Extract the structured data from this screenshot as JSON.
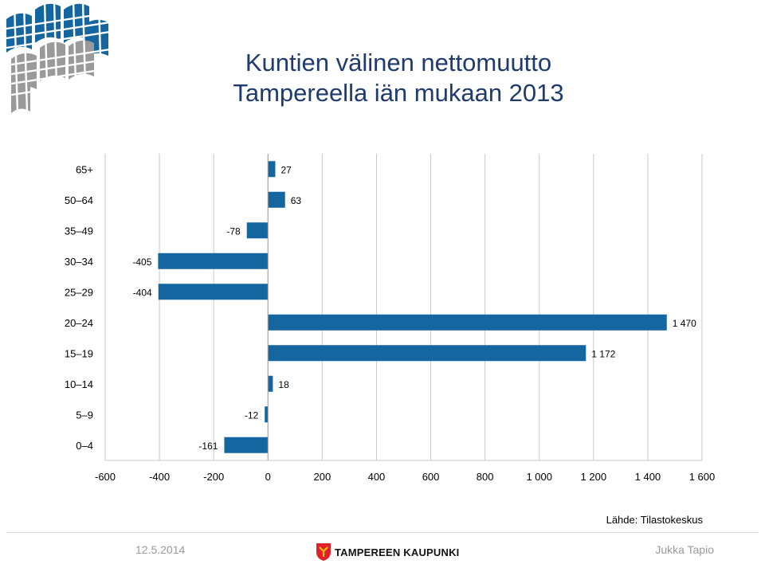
{
  "title_line1": "Kuntien välinen nettomuutto",
  "title_line2": "Tampereella iän mukaan 2013",
  "source": "Lähde: Tilastokeskus",
  "footer": {
    "date": "12.5.2014",
    "city": "TAMPEREEN KAUPUNKI",
    "author": "Jukka Tapio"
  },
  "colors": {
    "bar": "#1466a0",
    "title": "#1f3b6e"
  },
  "chart_data": {
    "type": "bar",
    "orientation": "horizontal",
    "categories": [
      "65+",
      "50–64",
      "35–49",
      "30–34",
      "25–29",
      "20–24",
      "15–19",
      "10–14",
      "5–9",
      "0–4"
    ],
    "values": [
      27,
      63,
      -78,
      -405,
      -404,
      1470,
      1172,
      18,
      -12,
      -161
    ],
    "value_labels": [
      "27",
      "63",
      "-78",
      "-405",
      "-404",
      "1 470",
      "1 172",
      "18",
      "-12",
      "-161"
    ],
    "xlim": [
      -600,
      1600
    ],
    "xticks": [
      -600,
      -400,
      -200,
      0,
      200,
      400,
      600,
      800,
      1000,
      1200,
      1400,
      1600
    ],
    "xtick_labels": [
      "-600",
      "-400",
      "-200",
      "0",
      "200",
      "400",
      "600",
      "800",
      "1 000",
      "1 200",
      "1 400",
      "1 600"
    ],
    "grid": true
  }
}
